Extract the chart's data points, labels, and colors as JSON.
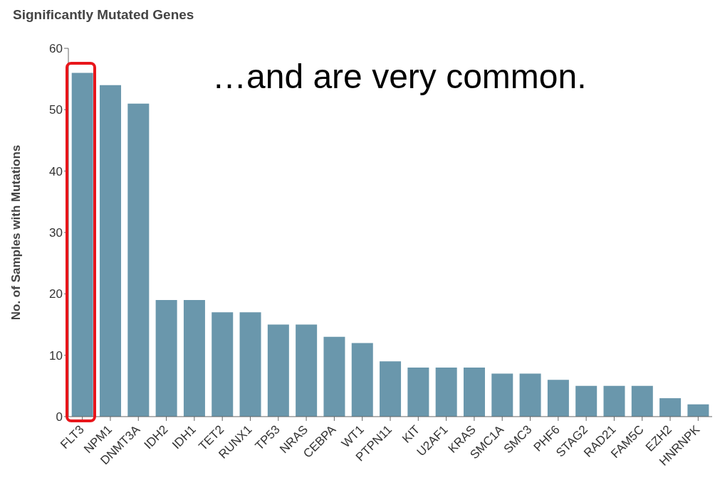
{
  "chart_data": {
    "type": "bar",
    "title": "Significantly Mutated Genes",
    "ylabel": "No. of Samples with Mutations",
    "categories": [
      "FLT3",
      "NPM1",
      "DNMT3A",
      "IDH2",
      "IDH1",
      "TET2",
      "RUNX1",
      "TP53",
      "NRAS",
      "CEBPA",
      "WT1",
      "PTPN11",
      "KIT",
      "U2AF1",
      "KRAS",
      "SMC1A",
      "SMC3",
      "PHF6",
      "STAG2",
      "RAD21",
      "FAM5C",
      "EZH2",
      "HNRNPK"
    ],
    "values": [
      56,
      54,
      51,
      19,
      19,
      17,
      17,
      15,
      15,
      13,
      12,
      9,
      8,
      8,
      8,
      7,
      7,
      6,
      5,
      5,
      5,
      3,
      2
    ],
    "color": "#6a97ac",
    "ylim": [
      0,
      60
    ],
    "yticks": [
      0,
      10,
      20,
      30,
      40,
      50,
      60
    ],
    "grid": false,
    "legend": false,
    "annotations": [
      "…and are very common."
    ]
  }
}
